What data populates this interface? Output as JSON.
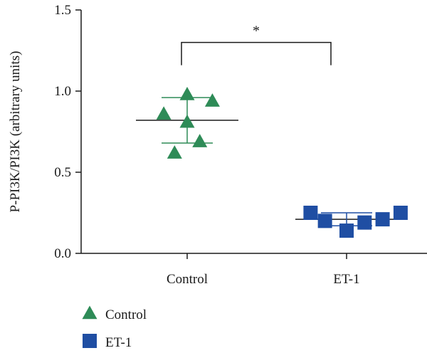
{
  "chart_data": {
    "type": "scatter",
    "ylabel": "P-PI3K/PI3K (arbitrary units)",
    "xlabel": "",
    "ylim": [
      0,
      1.5
    ],
    "yticks": [
      0.0,
      0.5,
      1.0,
      1.5
    ],
    "ytick_labels": [
      "0.0",
      "0.5",
      "1.0",
      "1.5"
    ],
    "categories": [
      "Control",
      "ET-1"
    ],
    "grid": false,
    "legend_position": "bottom-left",
    "series": [
      {
        "name": "Control",
        "marker": "triangle",
        "color": "#2e8b57",
        "points": [
          {
            "offset": -0.13,
            "y": 0.86
          },
          {
            "offset": 0.0,
            "y": 0.98
          },
          {
            "offset": 0.14,
            "y": 0.94
          },
          {
            "offset": 0.0,
            "y": 0.81
          },
          {
            "offset": 0.07,
            "y": 0.69
          },
          {
            "offset": -0.07,
            "y": 0.62
          }
        ],
        "mean": 0.82,
        "sd": 0.14
      },
      {
        "name": "ET-1",
        "marker": "square",
        "color": "#1f4ea3",
        "points": [
          {
            "offset": -0.2,
            "y": 0.25
          },
          {
            "offset": -0.12,
            "y": 0.2
          },
          {
            "offset": 0.0,
            "y": 0.14
          },
          {
            "offset": 0.1,
            "y": 0.19
          },
          {
            "offset": 0.2,
            "y": 0.21
          },
          {
            "offset": 0.3,
            "y": 0.25
          }
        ],
        "mean": 0.21,
        "sd": 0.04
      }
    ],
    "significance": {
      "label": "*",
      "between": [
        "Control",
        "ET-1"
      ],
      "y": 1.3
    }
  }
}
